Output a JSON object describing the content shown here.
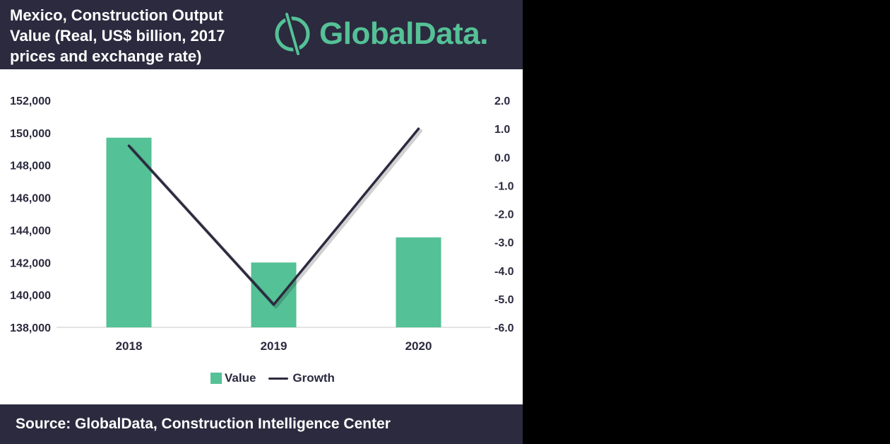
{
  "header": {
    "title": "Mexico, Construction Output Value (Real, US$ billion, 2017 prices and exchange rate)",
    "logo_text": "GlobalData."
  },
  "footer": {
    "source": "Source:  GlobalData, Construction Intelligence Center"
  },
  "colors": {
    "header_bg": "#2b2a3f",
    "bar": "#55c196",
    "line": "#2b2a3f",
    "background": "#ffffff"
  },
  "chart_data": {
    "type": "bar",
    "categories": [
      "2018",
      "2019",
      "2020"
    ],
    "series": [
      {
        "name": "Value",
        "type": "bar",
        "axis": "left",
        "values": [
          149700,
          142000,
          143550
        ]
      },
      {
        "name": "Growth",
        "type": "line",
        "axis": "right",
        "values": [
          0.4,
          -5.2,
          1.0
        ]
      }
    ],
    "y_left": {
      "range": [
        138000,
        152000
      ],
      "ticks": [
        "138,000",
        "140,000",
        "142,000",
        "144,000",
        "146,000",
        "148,000",
        "150,000",
        "152,000"
      ]
    },
    "y_right": {
      "range": [
        -6.0,
        2.0
      ],
      "ticks": [
        "-6.0",
        "-5.0",
        "-4.0",
        "-3.0",
        "-2.0",
        "-1.0",
        "0.0",
        "1.0",
        "2.0"
      ]
    },
    "legend": {
      "position": "bottom",
      "entries": [
        "Value",
        "Growth"
      ]
    },
    "grid": false
  }
}
